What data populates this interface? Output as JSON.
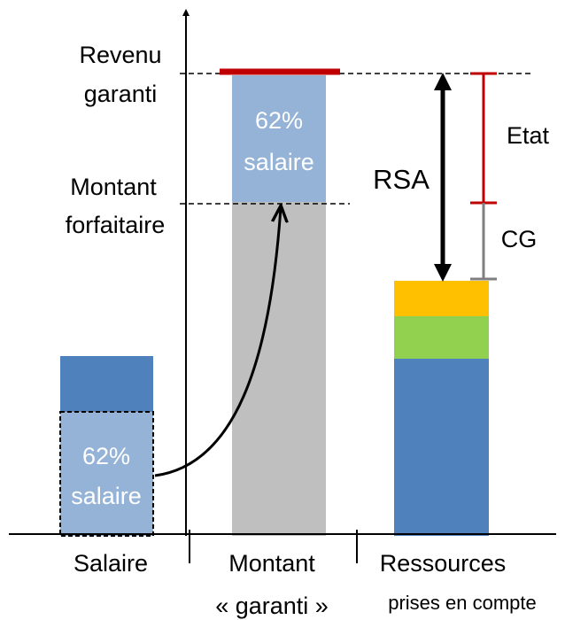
{
  "left_labels": [
    [
      "Revenu",
      "garanti"
    ],
    [
      "Montant",
      "forfaitaire"
    ]
  ],
  "inner_labels": [
    [
      "62%",
      "salaire"
    ],
    [
      "62%",
      "salaire"
    ]
  ],
  "annotations": {
    "rsa": "RSA",
    "etat": "Etat",
    "cg": "CG"
  },
  "categories": [
    [
      "Salaire"
    ],
    [
      "Montant",
      "« garanti »"
    ],
    [
      "Ressources",
      "prises en compte"
    ]
  ]
}
